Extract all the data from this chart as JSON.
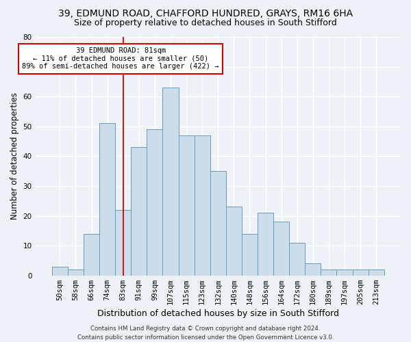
{
  "title1": "39, EDMUND ROAD, CHAFFORD HUNDRED, GRAYS, RM16 6HA",
  "title2": "Size of property relative to detached houses in South Stifford",
  "xlabel": "Distribution of detached houses by size in South Stifford",
  "ylabel": "Number of detached properties",
  "categories": [
    "50sqm",
    "58sqm",
    "66sqm",
    "74sqm",
    "83sqm",
    "91sqm",
    "99sqm",
    "107sqm",
    "115sqm",
    "123sqm",
    "132sqm",
    "140sqm",
    "148sqm",
    "156sqm",
    "164sqm",
    "172sqm",
    "180sqm",
    "189sqm",
    "197sqm",
    "205sqm",
    "213sqm"
  ],
  "values": [
    3,
    2,
    14,
    51,
    22,
    43,
    49,
    63,
    47,
    47,
    35,
    23,
    14,
    21,
    18,
    11,
    4,
    2,
    2,
    2,
    2
  ],
  "bar_color": "#ccdce9",
  "bar_edge_color": "#6699bb",
  "vline_x_index": 4,
  "vline_color": "#cc0000",
  "annotation_text": "39 EDMUND ROAD: 81sqm\n← 11% of detached houses are smaller (50)\n89% of semi-detached houses are larger (422) →",
  "annotation_box_facecolor": "#ffffff",
  "annotation_box_edgecolor": "#cc0000",
  "footer1": "Contains HM Land Registry data © Crown copyright and database right 2024.",
  "footer2": "Contains public sector information licensed under the Open Government Licence v3.0.",
  "ylim": [
    0,
    80
  ],
  "yticks": [
    0,
    10,
    20,
    30,
    40,
    50,
    60,
    70,
    80
  ],
  "bg_color": "#eef2f7",
  "grid_color": "#ffffff",
  "title1_fontsize": 10,
  "title2_fontsize": 9,
  "tick_fontsize": 7.5,
  "xlabel_fontsize": 9,
  "ylabel_fontsize": 8.5,
  "footer_fontsize": 6.2
}
